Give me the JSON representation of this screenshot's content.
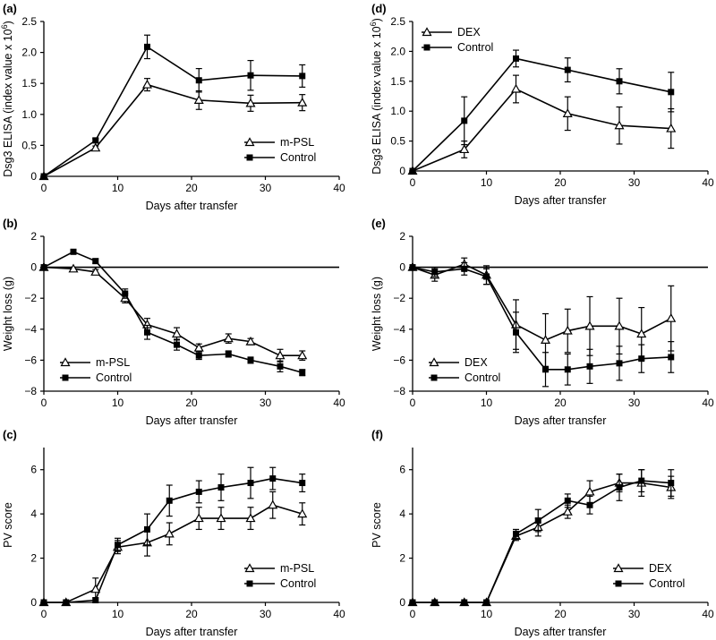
{
  "figure": {
    "charts": [
      {
        "panel": "(a)",
        "type": "line",
        "ylabel": "Dsg3 ELISA (index value x 10",
        "ylabel_sup": "6",
        "ylabel_tail": ")",
        "xlabel": "Days after transfer",
        "xlim": [
          0,
          40
        ],
        "xticks": [
          0,
          10,
          20,
          30,
          40
        ],
        "ylim": [
          0,
          2.5
        ],
        "yticks": [
          "0",
          "0.5",
          "1.0",
          "1.5",
          "2.0",
          "2.5"
        ],
        "ytick_values": [
          0,
          0.5,
          1.0,
          1.5,
          2.0,
          2.5
        ],
        "zero_line": false,
        "legend_position": "bottom-right",
        "series": [
          {
            "name": "m-PSL",
            "marker": "triangle",
            "x": [
              0,
              7,
              14,
              21,
              28,
              35
            ],
            "y": [
              0,
              0.46,
              1.48,
              1.23,
              1.18,
              1.19
            ],
            "err": [
              0,
              0.03,
              0.1,
              0.15,
              0.13,
              0.13
            ]
          },
          {
            "name": "Control",
            "marker": "square",
            "x": [
              0,
              7,
              14,
              21,
              28,
              35
            ],
            "y": [
              0,
              0.58,
              2.09,
              1.55,
              1.63,
              1.62
            ],
            "err": [
              0,
              0.03,
              0.19,
              0.19,
              0.24,
              0.18
            ]
          }
        ]
      },
      {
        "panel": "(b)",
        "type": "line",
        "ylabel": "Weight loss (g)",
        "ylabel_sup": "",
        "ylabel_tail": "",
        "xlabel": "Days after transfer",
        "xlim": [
          0,
          40
        ],
        "xticks": [
          0,
          10,
          20,
          30,
          40
        ],
        "ylim": [
          -8,
          2
        ],
        "yticks": [
          "−8",
          "−6",
          "−4",
          "−2",
          "0",
          "2"
        ],
        "ytick_values": [
          -8,
          -6,
          -4,
          -2,
          0,
          2
        ],
        "zero_line": true,
        "legend_position": "bottom-left",
        "series": [
          {
            "name": "m-PSL",
            "marker": "triangle",
            "x": [
              0,
              4,
              7,
              11,
              14,
              18,
              21,
              25,
              28,
              32,
              35
            ],
            "y": [
              0,
              -0.1,
              -0.3,
              -2.0,
              -3.7,
              -4.3,
              -5.2,
              -4.6,
              -4.8,
              -5.7,
              -5.7
            ],
            "err": [
              0,
              0.1,
              0.15,
              0.3,
              0.4,
              0.4,
              0.25,
              0.3,
              0.2,
              0.4,
              0.3
            ]
          },
          {
            "name": "Control",
            "marker": "square",
            "x": [
              0,
              4,
              7,
              11,
              14,
              18,
              21,
              25,
              28,
              32,
              35
            ],
            "y": [
              0,
              1.0,
              0.4,
              -1.7,
              -4.2,
              -5.0,
              -5.7,
              -5.6,
              -6.0,
              -6.4,
              -6.8
            ],
            "err": [
              0,
              0.1,
              0.15,
              0.3,
              0.45,
              0.35,
              0.25,
              0.2,
              0.2,
              0.35,
              0.2
            ]
          }
        ]
      },
      {
        "panel": "(c)",
        "type": "line",
        "ylabel": "PV score",
        "ylabel_sup": "",
        "ylabel_tail": "",
        "xlabel": "Days after transfer",
        "xlim": [
          0,
          40
        ],
        "xticks": [
          0,
          10,
          20,
          30,
          40
        ],
        "ylim": [
          0,
          7
        ],
        "yticks": [
          "0",
          "2",
          "4",
          "6"
        ],
        "ytick_values": [
          0,
          2,
          4,
          6
        ],
        "zero_line": false,
        "legend_position": "bottom-right",
        "series": [
          {
            "name": "m-PSL",
            "marker": "triangle",
            "x": [
              0,
              3,
              7,
              10,
              14,
              17,
              21,
              24,
              28,
              31,
              35
            ],
            "y": [
              0,
              0,
              0.6,
              2.5,
              2.7,
              3.1,
              3.8,
              3.8,
              3.8,
              4.4,
              4.0
            ],
            "err": [
              0,
              0,
              0.5,
              0.3,
              0.6,
              0.5,
              0.5,
              0.5,
              0.5,
              0.6,
              0.5
            ]
          },
          {
            "name": "Control",
            "marker": "square",
            "x": [
              0,
              3,
              7,
              10,
              14,
              17,
              21,
              24,
              28,
              31,
              35
            ],
            "y": [
              0,
              0,
              0.1,
              2.6,
              3.3,
              4.6,
              5.0,
              5.2,
              5.4,
              5.6,
              5.4
            ],
            "err": [
              0,
              0,
              0.1,
              0.3,
              0.7,
              0.7,
              0.5,
              0.6,
              0.7,
              0.5,
              0.4
            ]
          }
        ]
      },
      {
        "panel": "(d)",
        "type": "line",
        "ylabel": "Dsg3 ELISA (index value x 10",
        "ylabel_sup": "6",
        "ylabel_tail": ")",
        "xlabel": "Days after transfer",
        "xlim": [
          0,
          40
        ],
        "xticks": [
          0,
          10,
          20,
          30,
          40
        ],
        "ylim": [
          0,
          2.5
        ],
        "yticks": [
          "0",
          "0.5",
          "1.0",
          "1.5",
          "2.0",
          "2.5"
        ],
        "ytick_values": [
          0,
          0.5,
          1.0,
          1.5,
          2.0,
          2.5
        ],
        "zero_line": false,
        "legend_position": "top-left",
        "series": [
          {
            "name": "DEX",
            "marker": "triangle",
            "x": [
              0,
              7,
              14,
              21,
              28,
              35
            ],
            "y": [
              0,
              0.36,
              1.37,
              0.96,
              0.76,
              0.71
            ],
            "err": [
              0,
              0.14,
              0.23,
              0.28,
              0.31,
              0.33
            ]
          },
          {
            "name": "Control",
            "marker": "square",
            "x": [
              0,
              7,
              14,
              21,
              28,
              35
            ],
            "y": [
              0,
              0.84,
              1.88,
              1.69,
              1.5,
              1.32
            ],
            "err": [
              0,
              0.4,
              0.14,
              0.2,
              0.21,
              0.33
            ]
          }
        ]
      },
      {
        "panel": "(e)",
        "type": "line",
        "ylabel": "Weight loss (g)",
        "ylabel_sup": "",
        "ylabel_tail": "",
        "xlabel": "Days after transfer",
        "xlim": [
          0,
          40
        ],
        "xticks": [
          0,
          10,
          20,
          30,
          40
        ],
        "ylim": [
          -8,
          2
        ],
        "yticks": [
          "−8",
          "−6",
          "−4",
          "−2",
          "0",
          "2"
        ],
        "ytick_values": [
          -8,
          -6,
          -4,
          -2,
          0,
          2
        ],
        "zero_line": true,
        "legend_position": "bottom-left",
        "series": [
          {
            "name": "DEX",
            "marker": "triangle",
            "x": [
              0,
              3,
              7,
              10,
              14,
              18,
              21,
              24,
              28,
              31,
              35
            ],
            "y": [
              0,
              -0.5,
              0.2,
              -0.5,
              -3.7,
              -4.7,
              -4.1,
              -3.8,
              -3.8,
              -4.3,
              -3.3
            ],
            "err": [
              0,
              0.4,
              0.4,
              0.6,
              1.6,
              1.7,
              1.4,
              1.9,
              1.8,
              1.7,
              2.1
            ]
          },
          {
            "name": "Control",
            "marker": "square",
            "x": [
              0,
              3,
              7,
              10,
              14,
              18,
              21,
              24,
              28,
              31,
              35
            ],
            "y": [
              0,
              -0.3,
              -0.1,
              -0.6,
              -4.2,
              -6.6,
              -6.6,
              -6.4,
              -6.2,
              -5.9,
              -5.8
            ],
            "err": [
              0,
              0.3,
              0.4,
              0.5,
              1.3,
              1.1,
              1.0,
              1.1,
              1.1,
              0.9,
              1.0
            ]
          }
        ]
      },
      {
        "panel": "(f)",
        "type": "line",
        "ylabel": "PV score",
        "ylabel_sup": "",
        "ylabel_tail": "",
        "xlabel": "Days after transfer",
        "xlim": [
          0,
          40
        ],
        "xticks": [
          0,
          10,
          20,
          30,
          40
        ],
        "ylim": [
          0,
          7
        ],
        "yticks": [
          "0",
          "2",
          "4",
          "6"
        ],
        "ytick_values": [
          0,
          2,
          4,
          6
        ],
        "zero_line": false,
        "legend_position": "bottom-right",
        "series": [
          {
            "name": "DEX",
            "marker": "triangle",
            "x": [
              0,
              3,
              7,
              10,
              14,
              17,
              21,
              24,
              28,
              31,
              35
            ],
            "y": [
              0,
              0,
              0,
              0,
              3.0,
              3.4,
              4.1,
              5.0,
              5.4,
              5.4,
              5.2
            ],
            "err": [
              0,
              0,
              0,
              0,
              0.2,
              0.4,
              0.3,
              0.5,
              0.4,
              0.6,
              0.5
            ]
          },
          {
            "name": "Control",
            "marker": "square",
            "x": [
              0,
              3,
              7,
              10,
              14,
              17,
              21,
              24,
              28,
              31,
              35
            ],
            "y": [
              0,
              0,
              0,
              0,
              3.1,
              3.7,
              4.6,
              4.4,
              5.2,
              5.5,
              5.4
            ],
            "err": [
              0,
              0,
              0,
              0,
              0.2,
              0.5,
              0.3,
              0.4,
              0.6,
              0.5,
              0.6
            ]
          }
        ]
      }
    ]
  },
  "chart_data": [
    {
      "type": "line",
      "panel": "(a)",
      "xlabel": "Days after transfer",
      "ylabel": "Dsg3 ELISA (index value x 10^6)",
      "xlim": [
        0,
        40
      ],
      "ylim": [
        0,
        2.5
      ],
      "legend": "bottom-right",
      "series": [
        {
          "name": "m-PSL",
          "x": [
            0,
            7,
            14,
            21,
            28,
            35
          ],
          "y": [
            0,
            0.46,
            1.48,
            1.23,
            1.18,
            1.19
          ],
          "err": [
            0,
            0.03,
            0.1,
            0.15,
            0.13,
            0.13
          ]
        },
        {
          "name": "Control",
          "x": [
            0,
            7,
            14,
            21,
            28,
            35
          ],
          "y": [
            0,
            0.58,
            2.09,
            1.55,
            1.63,
            1.62
          ],
          "err": [
            0,
            0.03,
            0.19,
            0.19,
            0.24,
            0.18
          ]
        }
      ]
    },
    {
      "type": "line",
      "panel": "(b)",
      "xlabel": "Days after transfer",
      "ylabel": "Weight loss (g)",
      "xlim": [
        0,
        40
      ],
      "ylim": [
        -8,
        2
      ],
      "legend": "bottom-left",
      "series": [
        {
          "name": "m-PSL",
          "x": [
            0,
            4,
            7,
            11,
            14,
            18,
            21,
            25,
            28,
            32,
            35
          ],
          "y": [
            0,
            -0.1,
            -0.3,
            -2.0,
            -3.7,
            -4.3,
            -5.2,
            -4.6,
            -4.8,
            -5.7,
            -5.7
          ]
        },
        {
          "name": "Control",
          "x": [
            0,
            4,
            7,
            11,
            14,
            18,
            21,
            25,
            28,
            32,
            35
          ],
          "y": [
            0,
            1.0,
            0.4,
            -1.7,
            -4.2,
            -5.0,
            -5.7,
            -5.6,
            -6.0,
            -6.4,
            -6.8
          ]
        }
      ]
    },
    {
      "type": "line",
      "panel": "(c)",
      "xlabel": "Days after transfer",
      "ylabel": "PV score",
      "xlim": [
        0,
        40
      ],
      "ylim": [
        0,
        7
      ],
      "legend": "bottom-right",
      "series": [
        {
          "name": "m-PSL",
          "x": [
            0,
            3,
            7,
            10,
            14,
            17,
            21,
            24,
            28,
            31,
            35
          ],
          "y": [
            0,
            0,
            0.6,
            2.5,
            2.7,
            3.1,
            3.8,
            3.8,
            3.8,
            4.4,
            4.0
          ]
        },
        {
          "name": "Control",
          "x": [
            0,
            3,
            7,
            10,
            14,
            17,
            21,
            24,
            28,
            31,
            35
          ],
          "y": [
            0,
            0,
            0.1,
            2.6,
            3.3,
            4.6,
            5.0,
            5.2,
            5.4,
            5.6,
            5.4
          ]
        }
      ]
    },
    {
      "type": "line",
      "panel": "(d)",
      "xlabel": "Days after transfer",
      "ylabel": "Dsg3 ELISA (index value x 10^6)",
      "xlim": [
        0,
        40
      ],
      "ylim": [
        0,
        2.5
      ],
      "legend": "top-left",
      "series": [
        {
          "name": "DEX",
          "x": [
            0,
            7,
            14,
            21,
            28,
            35
          ],
          "y": [
            0,
            0.36,
            1.37,
            0.96,
            0.76,
            0.71
          ]
        },
        {
          "name": "Control",
          "x": [
            0,
            7,
            14,
            21,
            28,
            35
          ],
          "y": [
            0,
            0.84,
            1.88,
            1.69,
            1.5,
            1.32
          ]
        }
      ]
    },
    {
      "type": "line",
      "panel": "(e)",
      "xlabel": "Days after transfer",
      "ylabel": "Weight loss (g)",
      "xlim": [
        0,
        40
      ],
      "ylim": [
        -8,
        2
      ],
      "legend": "bottom-left",
      "series": [
        {
          "name": "DEX",
          "x": [
            0,
            3,
            7,
            10,
            14,
            18,
            21,
            24,
            28,
            31,
            35
          ],
          "y": [
            0,
            -0.5,
            0.2,
            -0.5,
            -3.7,
            -4.7,
            -4.1,
            -3.8,
            -3.8,
            -4.3,
            -3.3
          ]
        },
        {
          "name": "Control",
          "x": [
            0,
            3,
            7,
            10,
            14,
            18,
            21,
            24,
            28,
            31,
            35
          ],
          "y": [
            0,
            -0.3,
            -0.1,
            -0.6,
            -4.2,
            -6.6,
            -6.6,
            -6.4,
            -6.2,
            -5.9,
            -5.8
          ]
        }
      ]
    },
    {
      "type": "line",
      "panel": "(f)",
      "xlabel": "Days after transfer",
      "ylabel": "PV score",
      "xlim": [
        0,
        40
      ],
      "ylim": [
        0,
        7
      ],
      "legend": "bottom-right",
      "series": [
        {
          "name": "DEX",
          "x": [
            0,
            3,
            7,
            10,
            14,
            17,
            21,
            24,
            28,
            31,
            35
          ],
          "y": [
            0,
            0,
            0,
            0,
            3.0,
            3.4,
            4.1,
            5.0,
            5.4,
            5.4,
            5.2
          ]
        },
        {
          "name": "Control",
          "x": [
            0,
            3,
            7,
            10,
            14,
            17,
            21,
            24,
            28,
            31,
            35
          ],
          "y": [
            0,
            0,
            0,
            0,
            3.1,
            3.7,
            4.6,
            4.4,
            5.2,
            5.5,
            5.4
          ]
        }
      ]
    }
  ]
}
